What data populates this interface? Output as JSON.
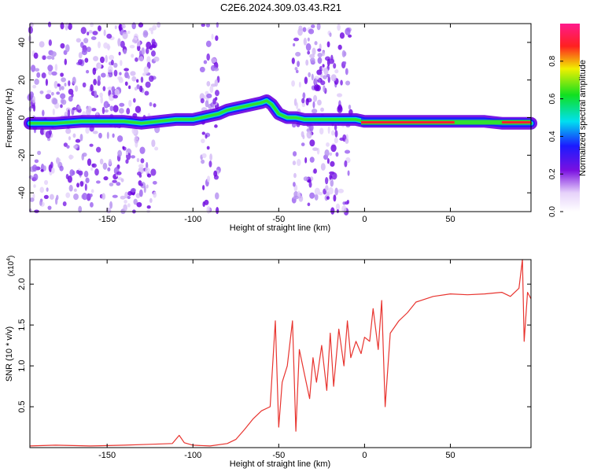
{
  "figure_title": "C2E6.2024.309.03.43.R21",
  "colors": {
    "snr_line": "#e8342f",
    "spectrum_ridge": "#ff2030",
    "scatter_dots": "#8a2be2",
    "background": "#ffffff",
    "axis": "#000000"
  },
  "chart_data": [
    {
      "id": "spectrogram",
      "type": "heatmap",
      "title": "",
      "xlabel": "Height of straight line (km)",
      "ylabel": "Frequency (Hz)",
      "xlim": [
        -195,
        97
      ],
      "ylim": [
        -50,
        50
      ],
      "xticks": [
        "-150",
        "-100",
        "-50",
        "0",
        "50"
      ],
      "xtick_values": [
        -150,
        -100,
        -50,
        0,
        50
      ],
      "yticks": [
        "-40",
        "-20",
        "0",
        "20",
        "40"
      ],
      "ytick_values": [
        -40,
        -20,
        0,
        20,
        40
      ],
      "colorbar": {
        "label": "Normalized spectral amplitude",
        "range": [
          0,
          1
        ],
        "ticks": [
          "0.0",
          "0.2",
          "0.4",
          "0.6",
          "0.8"
        ],
        "tick_values": [
          0.0,
          0.2,
          0.4,
          0.6,
          0.8
        ],
        "colormap": "rainbow (purple-blue-cyan-green-yellow-red-magenta)"
      },
      "ridge": {
        "x": [
          -195,
          -180,
          -165,
          -150,
          -140,
          -130,
          -120,
          -110,
          -100,
          -95,
          -90,
          -85,
          -80,
          -75,
          -70,
          -65,
          -60,
          -57,
          -54,
          -50,
          -45,
          -40,
          -35,
          -30,
          -25,
          -20,
          -15,
          -10,
          -5,
          0,
          10,
          20,
          30,
          40,
          50,
          60,
          70,
          80,
          90,
          97
        ],
        "y": [
          -3,
          -3,
          -2,
          -2,
          -2,
          -3,
          -2,
          -1,
          -1,
          0,
          1,
          2,
          4,
          5,
          6,
          7,
          8,
          9,
          7,
          2,
          0,
          0,
          -1,
          -1,
          -1,
          -1,
          -1,
          -1,
          -1,
          -2,
          -2,
          -2,
          -2,
          -2,
          -2,
          -2,
          -2,
          -3,
          -3,
          -3
        ]
      },
      "noise_bands_km": [
        [
          -195,
          -120
        ],
        [
          -95,
          -85
        ],
        [
          -42,
          -8
        ]
      ]
    },
    {
      "id": "snr",
      "type": "line",
      "title": "",
      "xlabel": "Height of straight line (km)",
      "ylabel": "SNR (10 * v/v)",
      "multiplier": "(x10",
      "multiplier_exp": "4",
      "multiplier_close": ")",
      "xlim": [
        -195,
        97
      ],
      "ylim": [
        0,
        2.3
      ],
      "xticks": [
        "-150",
        "-100",
        "-50",
        "0",
        "50"
      ],
      "xtick_values": [
        -150,
        -100,
        -50,
        0,
        50
      ],
      "yticks": [
        "0.5",
        "1.0",
        "1.5",
        "2.0"
      ],
      "ytick_values": [
        0.5,
        1.0,
        1.5,
        2.0
      ],
      "series": [
        {
          "x": [
            -195,
            -180,
            -160,
            -140,
            -125,
            -112,
            -108,
            -105,
            -100,
            -90,
            -80,
            -75,
            -70,
            -65,
            -60,
            -55,
            -52,
            -50,
            -48,
            -45,
            -42,
            -40,
            -38,
            -35,
            -32,
            -30,
            -28,
            -25,
            -22,
            -20,
            -18,
            -15,
            -12,
            -10,
            -8,
            -5,
            -2,
            0,
            3,
            5,
            8,
            10,
            12,
            15,
            20,
            25,
            30,
            40,
            50,
            60,
            70,
            80,
            85,
            90,
            92,
            93,
            95,
            97
          ],
          "y": [
            0.02,
            0.03,
            0.02,
            0.03,
            0.04,
            0.05,
            0.15,
            0.06,
            0.03,
            0.02,
            0.05,
            0.1,
            0.22,
            0.35,
            0.45,
            0.5,
            1.55,
            0.25,
            0.8,
            1.0,
            1.55,
            0.2,
            1.2,
            0.9,
            0.6,
            1.1,
            0.8,
            1.25,
            0.7,
            1.4,
            0.75,
            1.45,
            1.0,
            1.55,
            1.1,
            1.3,
            1.15,
            1.35,
            1.3,
            1.7,
            1.2,
            1.8,
            0.5,
            1.4,
            1.55,
            1.65,
            1.78,
            1.85,
            1.88,
            1.87,
            1.88,
            1.9,
            1.85,
            1.95,
            2.3,
            1.3,
            1.9,
            1.82
          ]
        }
      ]
    }
  ]
}
